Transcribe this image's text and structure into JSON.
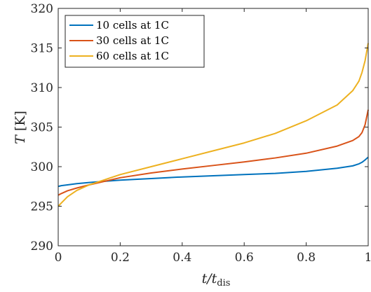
{
  "chart_data": {
    "type": "line",
    "xlabel": "t/t_dis",
    "ylabel": "T [K]",
    "xlim": [
      0,
      1
    ],
    "ylim": [
      290,
      320
    ],
    "xticks": [
      0,
      0.2,
      0.4,
      0.6,
      0.8,
      1
    ],
    "yticks": [
      290,
      295,
      300,
      305,
      310,
      315,
      320
    ],
    "xtick_labels": [
      "0",
      "0.2",
      "0.4",
      "0.6",
      "0.8",
      "1"
    ],
    "ytick_labels": [
      "290",
      "295",
      "300",
      "305",
      "310",
      "315",
      "320"
    ],
    "grid": false,
    "legend": "top-left",
    "series": [
      {
        "name": "10 cells at 1C",
        "color": "#0072BD",
        "x": [
          0,
          0.01,
          0.03,
          0.06,
          0.1,
          0.15,
          0.2,
          0.3,
          0.4,
          0.5,
          0.6,
          0.7,
          0.8,
          0.9,
          0.95,
          0.97,
          0.98,
          0.99,
          1.0
        ],
        "y": [
          297.5,
          297.6,
          297.7,
          297.85,
          298.0,
          298.15,
          298.3,
          298.5,
          298.7,
          298.85,
          299.0,
          299.15,
          299.4,
          299.8,
          300.1,
          300.35,
          300.55,
          300.85,
          301.2
        ]
      },
      {
        "name": "30 cells at 1C",
        "color": "#D95319",
        "x": [
          0,
          0.01,
          0.03,
          0.06,
          0.1,
          0.15,
          0.2,
          0.3,
          0.4,
          0.5,
          0.6,
          0.7,
          0.8,
          0.9,
          0.95,
          0.97,
          0.98,
          0.99,
          1.0
        ],
        "y": [
          296.4,
          296.6,
          296.95,
          297.3,
          297.7,
          298.15,
          298.6,
          299.2,
          299.7,
          300.15,
          300.6,
          301.1,
          301.7,
          302.6,
          303.3,
          303.8,
          304.3,
          305.3,
          307.2
        ]
      },
      {
        "name": "60 cells at 1C",
        "color": "#EDB120",
        "x": [
          0,
          0.01,
          0.03,
          0.06,
          0.1,
          0.15,
          0.2,
          0.3,
          0.4,
          0.5,
          0.6,
          0.7,
          0.8,
          0.9,
          0.95,
          0.97,
          0.98,
          0.99,
          1.0
        ],
        "y": [
          295.0,
          295.4,
          296.2,
          297.0,
          297.7,
          298.35,
          299.0,
          300.0,
          301.0,
          302.0,
          303.0,
          304.2,
          305.8,
          307.8,
          309.6,
          310.8,
          311.9,
          313.4,
          315.6
        ]
      }
    ]
  }
}
